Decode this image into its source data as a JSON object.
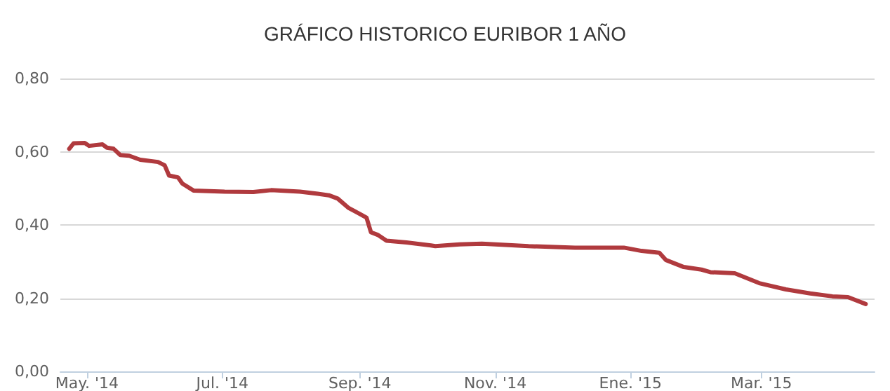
{
  "chart_data": {
    "type": "line",
    "title": "GRÁFICO HISTORICO EURIBOR 1 AÑO",
    "x": [
      "2014-04-23",
      "2014-04-25",
      "2014-04-30",
      "2014-05-02",
      "2014-05-08",
      "2014-05-10",
      "2014-05-13",
      "2014-05-16",
      "2014-05-20",
      "2014-05-25",
      "2014-06-02",
      "2014-06-05",
      "2014-06-07",
      "2014-06-11",
      "2014-06-13",
      "2014-06-18",
      "2014-07-02",
      "2014-07-15",
      "2014-07-23",
      "2014-08-05",
      "2014-08-13",
      "2014-08-18",
      "2014-08-22",
      "2014-08-27",
      "2014-09-01",
      "2014-09-04",
      "2014-09-06",
      "2014-09-09",
      "2014-09-13",
      "2014-09-22",
      "2014-10-03",
      "2014-10-05",
      "2014-10-16",
      "2014-10-26",
      "2014-11-16",
      "2014-12-07",
      "2014-12-29",
      "2015-01-06",
      "2015-01-14",
      "2015-01-17",
      "2015-01-25",
      "2015-02-02",
      "2015-02-06",
      "2015-02-17",
      "2015-02-28",
      "2015-03-12",
      "2015-03-23",
      "2015-04-02",
      "2015-04-09",
      "2015-04-17"
    ],
    "series": [
      {
        "color": "#b03a3e",
        "values": [
          0.608,
          0.623,
          0.624,
          0.616,
          0.62,
          0.611,
          0.608,
          0.591,
          0.589,
          0.578,
          0.572,
          0.563,
          0.535,
          0.53,
          0.513,
          0.494,
          0.491,
          0.49,
          0.495,
          0.491,
          0.485,
          0.481,
          0.472,
          0.446,
          0.43,
          0.42,
          0.38,
          0.373,
          0.357,
          0.352,
          0.344,
          0.342,
          0.347,
          0.349,
          0.342,
          0.338,
          0.338,
          0.329,
          0.324,
          0.304,
          0.285,
          0.278,
          0.271,
          0.268,
          0.241,
          0.224,
          0.213,
          0.205,
          0.203,
          0.184
        ]
      }
    ],
    "xlim": [
      "2014-04-19",
      "2015-04-21"
    ],
    "xticks": [
      {
        "value": "2014-05-01",
        "label": "May. '14"
      },
      {
        "value": "2014-07-01",
        "label": "Jul. '14"
      },
      {
        "value": "2014-09-01",
        "label": "Sep. '14"
      },
      {
        "value": "2014-11-01",
        "label": "Nov. '14"
      },
      {
        "value": "2015-01-01",
        "label": "Ene. '15"
      },
      {
        "value": "2015-03-01",
        "label": "Mar. '15"
      }
    ],
    "ylim": [
      0,
      0.8
    ],
    "yticks": [
      {
        "value": 0,
        "label": "0,00"
      },
      {
        "value": 0.2,
        "label": "0,20"
      },
      {
        "value": 0.4,
        "label": "0,40"
      },
      {
        "value": 0.6,
        "label": "0,60"
      },
      {
        "value": 0.8,
        "label": "0,80"
      }
    ],
    "grid": "y",
    "marker": "none",
    "line_style": "solid"
  }
}
